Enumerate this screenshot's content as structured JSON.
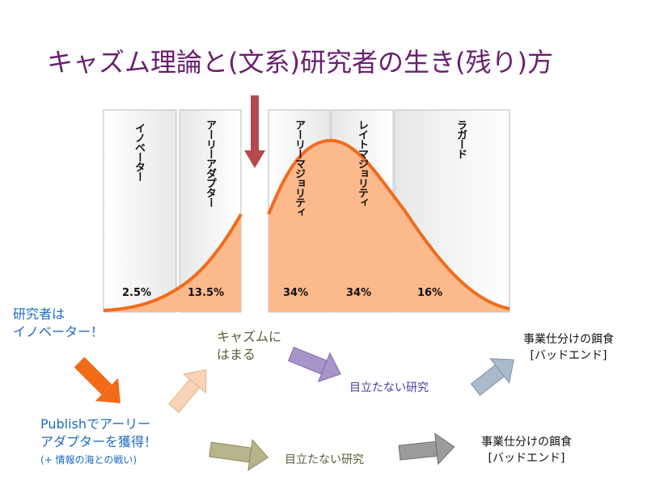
{
  "title": "キャズム理論と(文系)研究者の生き(残り)方",
  "segments": [
    {
      "label": "イノベーター",
      "pct": "2.5%"
    },
    {
      "label": "アーリーアダプター",
      "pct": "13.5%"
    },
    {
      "label": "アーリーマジョリティ",
      "pct": "34%"
    },
    {
      "label": "レイトマジョリティ",
      "pct": "34%"
    },
    {
      "label": "ラガード",
      "pct": "16%"
    }
  ],
  "flow": {
    "researcher": [
      "研究者は",
      "イノベーター！"
    ],
    "publish": [
      "Publishでアーリー",
      "アダプターを獲得！"
    ],
    "publish_note": "(+ 情報の海との戦い)",
    "chasm": [
      "キャズムに",
      "はまる"
    ],
    "obscure_upper": "目立たない研究",
    "obscure_lower": "目立たない研究",
    "outcome_upper": [
      "事業仕分けの餌食",
      "[バッドエンド]"
    ],
    "outcome_lower": [
      "事業仕分けの餌食",
      "[バッドエンド]"
    ]
  },
  "colors": {
    "title": "#6a1f6f",
    "curve": "#f26b1d",
    "fill": "#fcb98c",
    "down_arrow": "#b6494f"
  }
}
